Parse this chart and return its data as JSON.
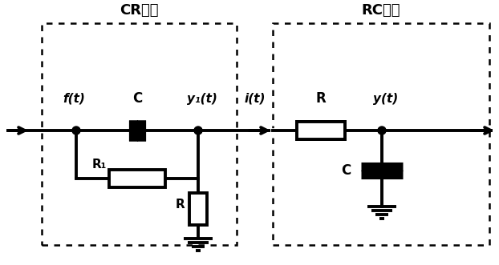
{
  "bg_color": "#ffffff",
  "line_color": "#000000",
  "cr_label": "CR系统",
  "rc_label": "RC系统",
  "ft_label": "f(t)",
  "y1t_label": "y₁(t)",
  "it_label": "i(t)",
  "yt_label": "y(t)",
  "R1_label": "R₁",
  "R_label1": "R",
  "R_label2": "R",
  "C_label1": "C",
  "C_label2": "C"
}
